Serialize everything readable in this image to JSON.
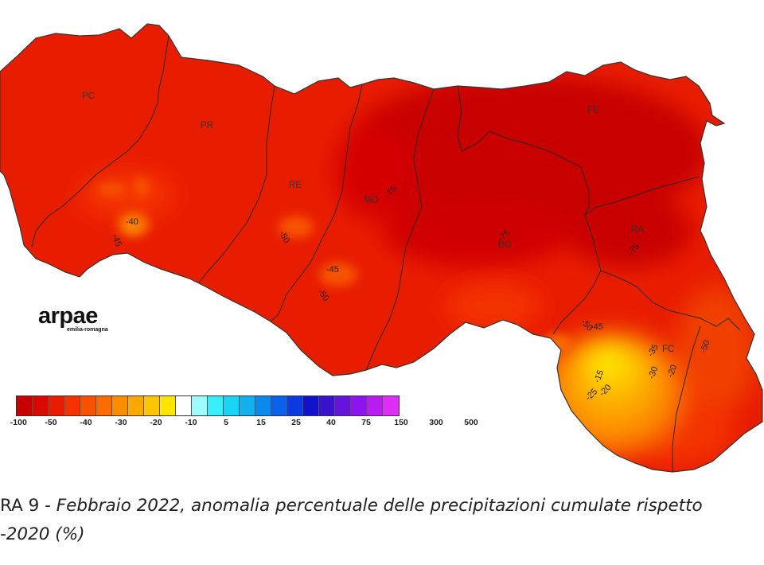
{
  "logo": {
    "name": "arpae",
    "subtitle": "emilia-romagna"
  },
  "provinces": [
    {
      "code": "PC"
    },
    {
      "code": "PR"
    },
    {
      "code": "RE"
    },
    {
      "code": "MO"
    },
    {
      "code": "BO"
    },
    {
      "code": "FE"
    },
    {
      "code": "RA"
    },
    {
      "code": "FC"
    }
  ],
  "isolines": [
    "-40",
    "-45",
    "-50",
    "-45",
    "-50",
    "-75",
    "-75",
    "-75",
    "-50",
    "-45",
    "-35",
    "-30",
    "-20",
    "-15",
    "-25",
    "-20",
    "-50"
  ],
  "legend": {
    "colors": [
      "#c80000",
      "#d80a00",
      "#e81d00",
      "#f43300",
      "#f75200",
      "#fa6c00",
      "#fc8c00",
      "#fda800",
      "#fec600",
      "#fde500",
      "#ffffff",
      "#9ffcfc",
      "#38eefb",
      "#18d4f5",
      "#12b0ee",
      "#0c8aeb",
      "#0b62ea",
      "#0b3be0",
      "#1212cc",
      "#3a12cc",
      "#6614dc",
      "#8c14ee",
      "#b81cf0",
      "#e02df5"
    ],
    "labels": [
      "-100",
      "-50",
      "-40",
      "-30",
      "-20",
      "-10",
      "5",
      "15",
      "25",
      "40",
      "75",
      "150",
      "300",
      "500"
    ]
  },
  "caption": {
    "prefix": "RA 9 - ",
    "line1_italic": "Febbraio 2022, anomalia percentuale delle precipitazioni cumulate rispetto",
    "line2_italic": "-2020 (%)"
  }
}
